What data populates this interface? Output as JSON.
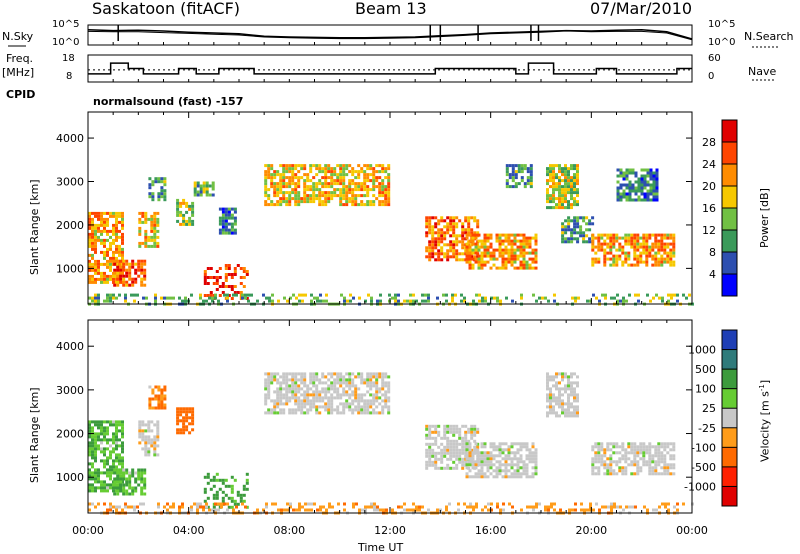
{
  "header": {
    "station": "Saskatoon (fitACF)",
    "beam": "Beam 13",
    "date": "07/Mar/2010",
    "nsky_label": "N.Sky",
    "nsearch_label": "N.Search",
    "nsky_ticks": [
      "10^5",
      "10^0"
    ],
    "nsearch_ticks": [
      "10^5",
      "10^0"
    ],
    "freq_label": "Freq.",
    "freq_unit": "[MHz]",
    "freq_ticks": [
      "18",
      "8"
    ],
    "nave_label": "Nave",
    "nave_ticks": [
      "60",
      "0"
    ],
    "cpid_label": "CPID",
    "cpid_text": "normalsound (fast) -157"
  },
  "chart_data": [
    {
      "type": "line",
      "title": "",
      "series": [
        {
          "name": "N.Sky",
          "x": [
            0,
            1,
            2,
            3,
            4,
            5,
            6,
            7,
            8,
            9,
            10,
            11,
            12,
            13,
            14,
            15,
            16,
            17,
            18,
            19,
            20,
            21,
            22,
            23,
            24
          ],
          "y": [
            3.8,
            3.6,
            3.7,
            3.5,
            3.2,
            3.0,
            2.8,
            2.2,
            2.0,
            1.9,
            1.8,
            1.8,
            1.9,
            2.0,
            2.3,
            2.6,
            3.0,
            3.2,
            3.4,
            3.6,
            3.5,
            3.7,
            3.8,
            3.3,
            1.5
          ]
        },
        {
          "name": "N.Search",
          "x": [
            0,
            1,
            2,
            3,
            4,
            5,
            6,
            7,
            8,
            9,
            10,
            11,
            12,
            13,
            14,
            15,
            16,
            17,
            18,
            19,
            20,
            21,
            22,
            23,
            24
          ],
          "y": [
            3.4,
            3.3,
            3.3,
            3.1,
            2.9,
            2.7,
            2.5,
            2.0,
            1.8,
            1.7,
            1.6,
            1.6,
            1.7,
            1.8,
            2.1,
            2.4,
            2.8,
            3.0,
            3.2,
            3.5,
            3.3,
            3.4,
            3.4,
            3.0,
            1.3
          ]
        }
      ],
      "ylim": [
        0,
        5
      ]
    },
    {
      "type": "line",
      "title": "",
      "series": [
        {
          "name": "Freq.",
          "x": [
            0,
            0.7,
            0.9,
            1.6,
            2.2,
            3.6,
            4.3,
            5.2,
            6.6,
            7.2,
            13.4,
            13.8,
            16.8,
            17.0,
            17.5,
            17.8,
            18.5,
            20.2,
            21.0,
            23.2,
            23.4,
            24
          ],
          "y": [
            11,
            11,
            15,
            13,
            11,
            13,
            11,
            13,
            11,
            11,
            11,
            13,
            13,
            11,
            15,
            15,
            11,
            13,
            11,
            11,
            13,
            13
          ]
        },
        {
          "name": "Nave",
          "x": [
            0,
            24
          ],
          "y": [
            18,
            18
          ]
        }
      ],
      "ylim": [
        8,
        18
      ]
    },
    {
      "type": "heatmap",
      "title": "",
      "xlabel": "Time UT",
      "ylabel": "Slant Range [km]",
      "x_ticks": [
        "00:00",
        "04:00",
        "08:00",
        "12:00",
        "16:00",
        "20:00",
        "00:00"
      ],
      "y_ticks": [
        "1000",
        "2000",
        "3000",
        "4000"
      ],
      "xlim": [
        0,
        24
      ],
      "ylim": [
        180,
        4600
      ],
      "colorbar": {
        "label": "Power [dB]",
        "ticks": [
          "4",
          "8",
          "12",
          "16",
          "20",
          "24",
          "28"
        ],
        "range": [
          0,
          30
        ]
      },
      "regions": [
        {
          "t": [
            0.0,
            1.4
          ],
          "r": [
            700,
            2300
          ],
          "level": 20
        },
        {
          "t": [
            1.0,
            2.3
          ],
          "r": [
            600,
            1200
          ],
          "level": 24
        },
        {
          "t": [
            2.0,
            2.8
          ],
          "r": [
            1500,
            2300
          ],
          "level": 18
        },
        {
          "t": [
            2.4,
            3.0
          ],
          "r": [
            2600,
            3100
          ],
          "level": 10
        },
        {
          "t": [
            3.5,
            4.2
          ],
          "r": [
            2000,
            2600
          ],
          "level": 14
        },
        {
          "t": [
            4.2,
            5.0
          ],
          "r": [
            2700,
            3000
          ],
          "level": 12
        },
        {
          "t": [
            4.6,
            6.3
          ],
          "r": [
            300,
            1100
          ],
          "level": 26
        },
        {
          "t": [
            5.2,
            5.8
          ],
          "r": [
            1800,
            2400
          ],
          "level": 8
        },
        {
          "t": [
            7.0,
            12.0
          ],
          "r": [
            2500,
            3400
          ],
          "level": 18
        },
        {
          "t": [
            13.4,
            15.5
          ],
          "r": [
            1200,
            2200
          ],
          "level": 22
        },
        {
          "t": [
            15.0,
            17.8
          ],
          "r": [
            1000,
            1800
          ],
          "level": 20
        },
        {
          "t": [
            16.6,
            17.6
          ],
          "r": [
            2900,
            3400
          ],
          "level": 10
        },
        {
          "t": [
            18.2,
            19.4
          ],
          "r": [
            2400,
            3400
          ],
          "level": 14
        },
        {
          "t": [
            18.8,
            20.0
          ],
          "r": [
            1600,
            2200
          ],
          "level": 10
        },
        {
          "t": [
            20.0,
            23.3
          ],
          "r": [
            1100,
            1800
          ],
          "level": 20
        },
        {
          "t": [
            21.0,
            22.6
          ],
          "r": [
            2600,
            3300
          ],
          "level": 8
        },
        {
          "t": [
            0.0,
            24.0
          ],
          "r": [
            200,
            420
          ],
          "level": 12
        }
      ]
    },
    {
      "type": "heatmap",
      "title": "",
      "xlabel": "Time UT",
      "ylabel": "Slant Range [km]",
      "x_ticks": [
        "00:00",
        "04:00",
        "08:00",
        "12:00",
        "16:00",
        "20:00",
        "00:00"
      ],
      "y_ticks": [
        "1000",
        "2000",
        "3000",
        "4000"
      ],
      "xlim": [
        0,
        24
      ],
      "ylim": [
        180,
        4600
      ],
      "colorbar": {
        "label": "Velocity [m s^-1]",
        "ticks": [
          "1000",
          "500",
          "100",
          "25",
          "-25",
          "-100",
          "-500",
          "-1000"
        ]
      },
      "regions": [
        {
          "t": [
            0.0,
            1.4
          ],
          "r": [
            700,
            2300
          ],
          "level": 100
        },
        {
          "t": [
            1.0,
            2.3
          ],
          "r": [
            600,
            1200
          ],
          "level": 100
        },
        {
          "t": [
            2.0,
            2.8
          ],
          "r": [
            1500,
            2300
          ],
          "level": 0
        },
        {
          "t": [
            2.4,
            3.0
          ],
          "r": [
            2600,
            3100
          ],
          "level": -100
        },
        {
          "t": [
            3.5,
            4.2
          ],
          "r": [
            2000,
            2600
          ],
          "level": -300
        },
        {
          "t": [
            4.6,
            6.3
          ],
          "r": [
            300,
            1100
          ],
          "level": 200
        },
        {
          "t": [
            7.0,
            12.0
          ],
          "r": [
            2500,
            3400
          ],
          "level": 0
        },
        {
          "t": [
            13.4,
            15.5
          ],
          "r": [
            1200,
            2200
          ],
          "level": 0
        },
        {
          "t": [
            15.0,
            17.8
          ],
          "r": [
            1000,
            1800
          ],
          "level": 0
        },
        {
          "t": [
            18.2,
            19.4
          ],
          "r": [
            2400,
            3400
          ],
          "level": 0
        },
        {
          "t": [
            20.0,
            23.3
          ],
          "r": [
            1100,
            1800
          ],
          "level": 0
        },
        {
          "t": [
            0.0,
            24.0
          ],
          "r": [
            200,
            420
          ],
          "level": -60
        }
      ]
    }
  ],
  "colors": {
    "power_scale": [
      "#0000ff",
      "#2d4fb0",
      "#3a9a5a",
      "#71c043",
      "#f6c800",
      "#ff8c00",
      "#ff4500",
      "#e00000"
    ],
    "velocity_scale": [
      "#1f3fb5",
      "#2f7b7b",
      "#3c9b3c",
      "#66cc33",
      "#c8c8c8",
      "#ff9c1a",
      "#ff6a00",
      "#ff2000",
      "#e00000"
    ]
  }
}
